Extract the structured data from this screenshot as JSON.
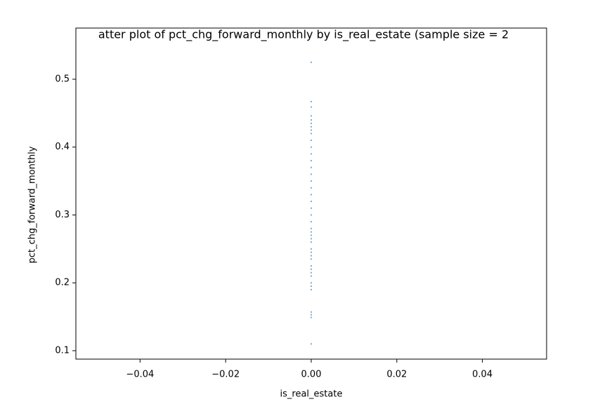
{
  "chart_data": {
    "type": "scatter",
    "title": "atter plot of pct_chg_forward_monthly by is_real_estate (sample size = 2",
    "xlabel": "is_real_estate",
    "ylabel": "pct_chg_forward_monthly",
    "color": "#1f77b4",
    "x": [
      0,
      0,
      0,
      0,
      0,
      0,
      0,
      0,
      0,
      0,
      0,
      0,
      0,
      0,
      0,
      0,
      0,
      0,
      0,
      0,
      0,
      0,
      0,
      0,
      0,
      0,
      0,
      0,
      0,
      0,
      0,
      0,
      0,
      0,
      0,
      0,
      0,
      0,
      0,
      0,
      0,
      0
    ],
    "y": [
      0.525,
      0.467,
      0.459,
      0.446,
      0.44,
      0.435,
      0.43,
      0.425,
      0.42,
      0.41,
      0.4,
      0.39,
      0.38,
      0.37,
      0.36,
      0.35,
      0.34,
      0.33,
      0.32,
      0.31,
      0.3,
      0.29,
      0.28,
      0.275,
      0.27,
      0.265,
      0.26,
      0.25,
      0.245,
      0.24,
      0.235,
      0.225,
      0.22,
      0.215,
      0.21,
      0.2,
      0.195,
      0.19,
      0.157,
      0.153,
      0.149,
      0.11
    ],
    "xlim": [
      -0.055,
      0.055
    ],
    "xticks": [
      {
        "value": -0.04,
        "label": "−0.04"
      },
      {
        "value": -0.02,
        "label": "−0.02"
      },
      {
        "value": 0,
        "label": "0.00"
      },
      {
        "value": 0.02,
        "label": "0.02"
      },
      {
        "value": 0.04,
        "label": "0.04"
      }
    ],
    "ylim": [
      0.0876,
      0.5754
    ],
    "yticks": [
      0.1,
      0.2,
      0.3,
      0.4,
      0.5
    ]
  }
}
